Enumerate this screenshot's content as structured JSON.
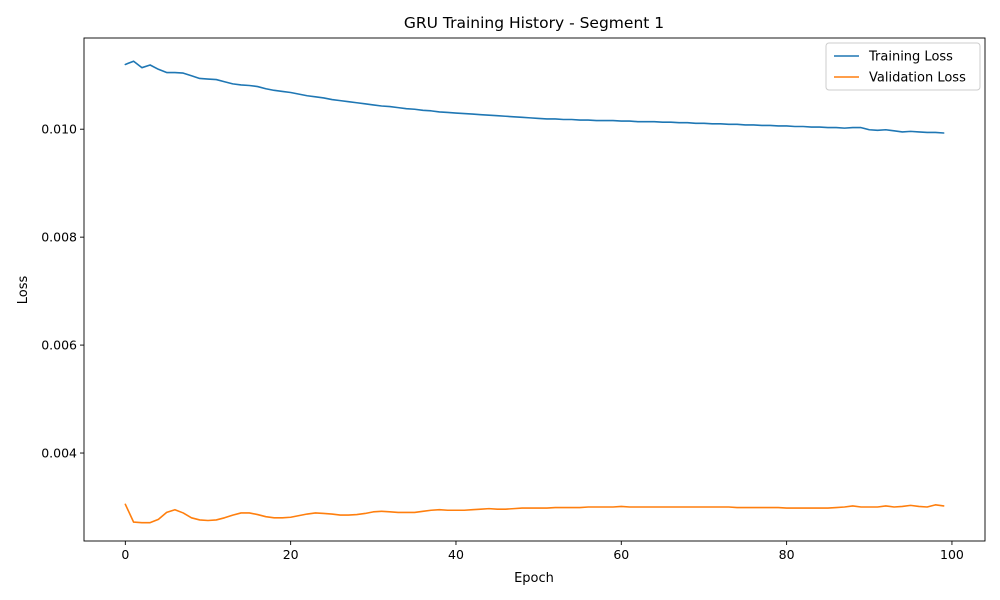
{
  "chart_data": {
    "type": "line",
    "title": "GRU Training History - Segment 1",
    "xlabel": "Epoch",
    "ylabel": "Loss",
    "xlim": [
      -5,
      104
    ],
    "ylim": [
      0.00237,
      0.01169
    ],
    "xticks": [
      0,
      20,
      40,
      60,
      80,
      100
    ],
    "xtick_labels": [
      "0",
      "20",
      "40",
      "60",
      "80",
      "100"
    ],
    "yticks": [
      0.004,
      0.006,
      0.008,
      0.01
    ],
    "ytick_labels": [
      "0.004",
      "0.006",
      "0.008",
      "0.010"
    ],
    "grid": false,
    "legend_position": "top-right",
    "series": [
      {
        "name": "Training Loss",
        "color": "#1f77b4",
        "x": [
          0,
          1,
          2,
          3,
          4,
          5,
          6,
          7,
          8,
          9,
          10,
          11,
          12,
          13,
          14,
          15,
          16,
          17,
          18,
          19,
          20,
          21,
          22,
          23,
          24,
          25,
          26,
          27,
          28,
          29,
          30,
          31,
          32,
          33,
          34,
          35,
          36,
          37,
          38,
          39,
          40,
          41,
          42,
          43,
          44,
          45,
          46,
          47,
          48,
          49,
          50,
          51,
          52,
          53,
          54,
          55,
          56,
          57,
          58,
          59,
          60,
          61,
          62,
          63,
          64,
          65,
          66,
          67,
          68,
          69,
          70,
          71,
          72,
          73,
          74,
          75,
          76,
          77,
          78,
          79,
          80,
          81,
          82,
          83,
          84,
          85,
          86,
          87,
          88,
          89,
          90,
          91,
          92,
          93,
          94,
          95,
          96,
          97,
          98,
          99
        ],
        "values": [
          0.0112,
          0.01126,
          0.01114,
          0.01119,
          0.01111,
          0.01105,
          0.01105,
          0.01104,
          0.01099,
          0.01094,
          0.01093,
          0.01092,
          0.01088,
          0.01084,
          0.01082,
          0.01081,
          0.01079,
          0.01075,
          0.01072,
          0.0107,
          0.01068,
          0.01065,
          0.01062,
          0.0106,
          0.01058,
          0.01055,
          0.01053,
          0.01051,
          0.01049,
          0.01047,
          0.01045,
          0.01043,
          0.01042,
          0.0104,
          0.01038,
          0.01037,
          0.01035,
          0.01034,
          0.01032,
          0.01031,
          0.0103,
          0.01029,
          0.01028,
          0.01027,
          0.01026,
          0.01025,
          0.01024,
          0.01023,
          0.01022,
          0.01021,
          0.0102,
          0.01019,
          0.01019,
          0.01018,
          0.01018,
          0.01017,
          0.01017,
          0.01016,
          0.01016,
          0.01016,
          0.01015,
          0.01015,
          0.01014,
          0.01014,
          0.01014,
          0.01013,
          0.01013,
          0.01012,
          0.01012,
          0.01011,
          0.01011,
          0.0101,
          0.0101,
          0.01009,
          0.01009,
          0.01008,
          0.01008,
          0.01007,
          0.01007,
          0.01006,
          0.01006,
          0.01005,
          0.01005,
          0.01004,
          0.01004,
          0.01003,
          0.01003,
          0.01002,
          0.01003,
          0.01003,
          0.00999,
          0.00998,
          0.00999,
          0.00997,
          0.00995,
          0.00996,
          0.00995,
          0.00994,
          0.00994,
          0.00993
        ]
      },
      {
        "name": "Validation Loss",
        "color": "#ff7f0e",
        "x": [
          0,
          1,
          2,
          3,
          4,
          5,
          6,
          7,
          8,
          9,
          10,
          11,
          12,
          13,
          14,
          15,
          16,
          17,
          18,
          19,
          20,
          21,
          22,
          23,
          24,
          25,
          26,
          27,
          28,
          29,
          30,
          31,
          32,
          33,
          34,
          35,
          36,
          37,
          38,
          39,
          40,
          41,
          42,
          43,
          44,
          45,
          46,
          47,
          48,
          49,
          50,
          51,
          52,
          53,
          54,
          55,
          56,
          57,
          58,
          59,
          60,
          61,
          62,
          63,
          64,
          65,
          66,
          67,
          68,
          69,
          70,
          71,
          72,
          73,
          74,
          75,
          76,
          77,
          78,
          79,
          80,
          81,
          82,
          83,
          84,
          85,
          86,
          87,
          88,
          89,
          90,
          91,
          92,
          93,
          94,
          95,
          96,
          97,
          98,
          99
        ],
        "values": [
          0.00305,
          0.00272,
          0.00271,
          0.00271,
          0.00277,
          0.0029,
          0.00295,
          0.00289,
          0.0028,
          0.00276,
          0.00275,
          0.00276,
          0.0028,
          0.00285,
          0.00289,
          0.00289,
          0.00286,
          0.00282,
          0.0028,
          0.0028,
          0.00281,
          0.00284,
          0.00287,
          0.00289,
          0.00288,
          0.00287,
          0.00285,
          0.00285,
          0.00286,
          0.00288,
          0.00291,
          0.00292,
          0.00291,
          0.0029,
          0.0029,
          0.0029,
          0.00292,
          0.00294,
          0.00295,
          0.00294,
          0.00294,
          0.00294,
          0.00295,
          0.00296,
          0.00297,
          0.00296,
          0.00296,
          0.00297,
          0.00298,
          0.00298,
          0.00298,
          0.00298,
          0.00299,
          0.00299,
          0.00299,
          0.00299,
          0.003,
          0.003,
          0.003,
          0.003,
          0.00301,
          0.003,
          0.003,
          0.003,
          0.003,
          0.003,
          0.003,
          0.003,
          0.003,
          0.003,
          0.003,
          0.003,
          0.003,
          0.003,
          0.00299,
          0.00299,
          0.00299,
          0.00299,
          0.00299,
          0.00299,
          0.00298,
          0.00298,
          0.00298,
          0.00298,
          0.00298,
          0.00298,
          0.00299,
          0.003,
          0.00302,
          0.003,
          0.003,
          0.003,
          0.00302,
          0.003,
          0.00301,
          0.00303,
          0.00301,
          0.003,
          0.00304,
          0.00302
        ]
      }
    ]
  }
}
